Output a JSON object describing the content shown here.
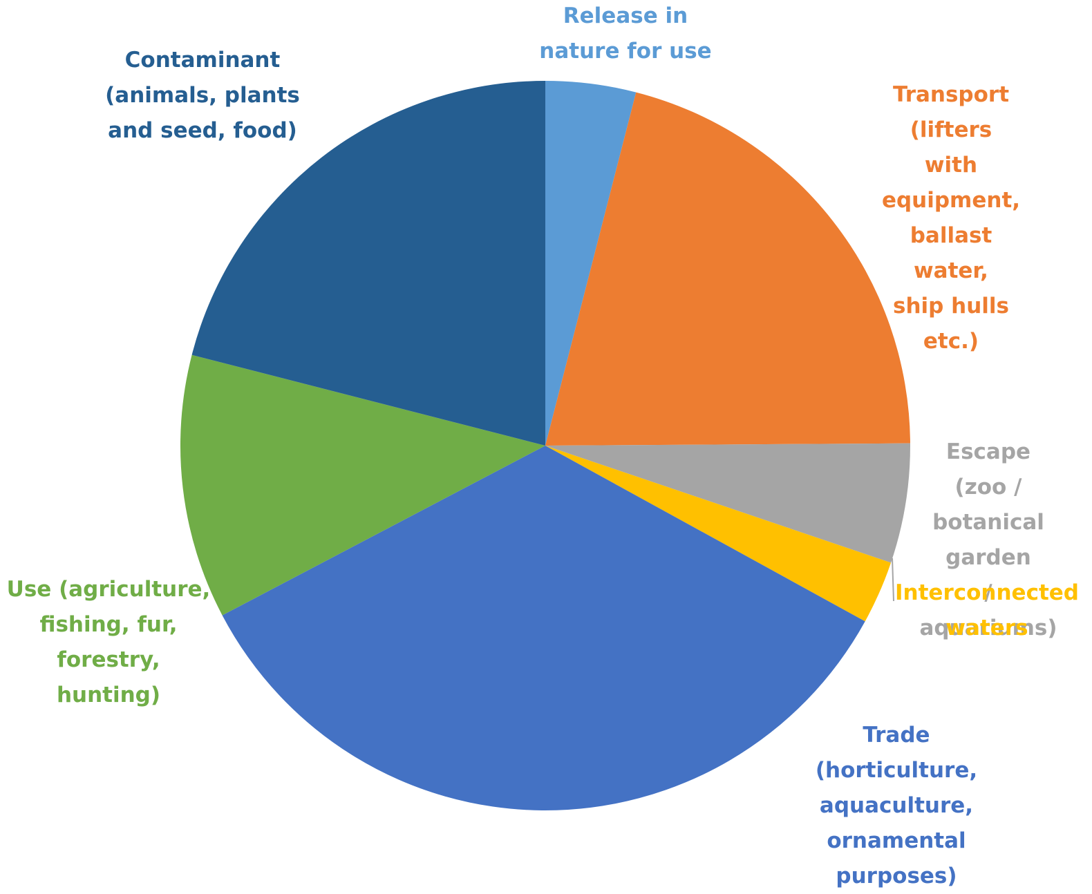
{
  "chart_data": {
    "type": "pie",
    "title": "",
    "start_angle_deg": 0,
    "direction": "clockwise",
    "slices": [
      {
        "label": "Release in\nnature for use",
        "value": 4.0,
        "color": "#5b9bd5"
      },
      {
        "label": "Transport (lifters\nwith equipment,\nballast water,\nship hulls etc.)",
        "value": 20.9,
        "color": "#ed7d31"
      },
      {
        "label": "Escape (zoo /\nbotanical garden\n/ aquariums)",
        "value": 5.3,
        "color": "#a5a5a5"
      },
      {
        "label": "Interconnected\nwaters",
        "value": 2.8,
        "color": "#ffc000"
      },
      {
        "label": "Trade (horticulture,\naquaculture,\nornamental\npurposes)",
        "value": 34.3,
        "color": "#4472c4"
      },
      {
        "label": "Use (agriculture,\nfishing, fur,\nforestry,\nhunting)",
        "value": 11.7,
        "color": "#70ad47"
      },
      {
        "label": "Contaminant\n(animals, plants\nand seed, food)",
        "value": 21.0,
        "color": "#255e91"
      }
    ]
  }
}
